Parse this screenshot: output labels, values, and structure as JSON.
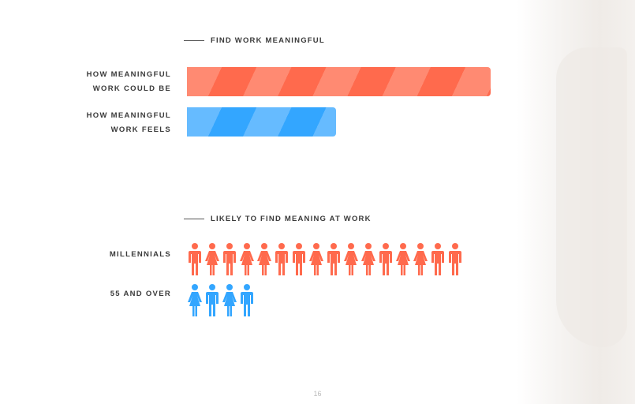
{
  "page_number": "16",
  "colors": {
    "coral": "#ff6a4d",
    "coral_light": "#ff8a72",
    "blue": "#33a6ff",
    "blue_light": "#66bbff"
  },
  "chart_data": [
    {
      "type": "bar",
      "title": "FIND WORK MEANINGFUL",
      "categories": [
        "HOW MEANINGFUL WORK COULD BE",
        "HOW MEANINGFUL WORK FEELS"
      ],
      "label_lines": [
        [
          "HOW MEANINGFUL",
          "WORK COULD BE"
        ],
        [
          "HOW MEANINGFUL",
          "WORK FEELS"
        ]
      ],
      "values": [
        100,
        49
      ],
      "xlim": [
        0,
        100
      ],
      "orientation": "horizontal"
    },
    {
      "type": "pictogram",
      "title": "LIKELY TO FIND MEANING AT WORK",
      "categories": [
        "MILLENNIALS",
        "55 AND OVER"
      ],
      "values": [
        16,
        4
      ],
      "figures": [
        [
          "man",
          "woman",
          "man",
          "woman",
          "woman",
          "man",
          "man",
          "woman",
          "man",
          "woman",
          "woman",
          "man",
          "woman",
          "woman",
          "man",
          "man"
        ],
        [
          "woman",
          "man",
          "woman",
          "man"
        ]
      ]
    }
  ]
}
